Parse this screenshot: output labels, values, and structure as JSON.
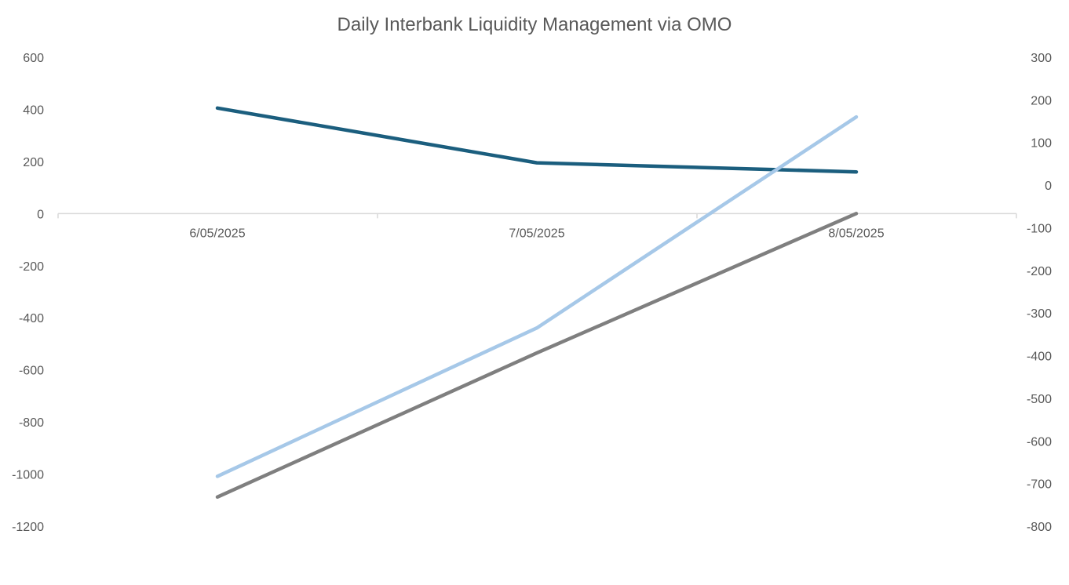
{
  "chart_data": {
    "type": "line",
    "title": "Daily Interbank Liquidity Management via OMO",
    "xlabel": "",
    "ylabel": "",
    "categories": [
      "6/05/2025",
      "7/05/2025",
      "8/05/2025"
    ],
    "y_left": {
      "ticks": [
        "600",
        "400",
        "200",
        "0",
        "-200",
        "-400",
        "-600",
        "-800",
        "-1000",
        "-1200"
      ],
      "ylim": [
        -1200,
        600
      ]
    },
    "y_right": {
      "ticks": [
        "300",
        "200",
        "100",
        "0",
        "-100",
        "-200",
        "-300",
        "-400",
        "-500",
        "-600",
        "-700",
        "-800"
      ],
      "ylim": [
        -800,
        300
      ]
    },
    "grid": false,
    "legend": "none",
    "series": [
      {
        "axis": "left",
        "color": "#1b5e7e",
        "values": [
          405,
          195,
          160
        ]
      },
      {
        "axis": "left",
        "color": "#7f7f7f",
        "values": [
          -1088,
          -535,
          0
        ]
      },
      {
        "axis": "right",
        "color": "#a6c8e8",
        "values": [
          -683,
          -335,
          160
        ]
      }
    ]
  }
}
